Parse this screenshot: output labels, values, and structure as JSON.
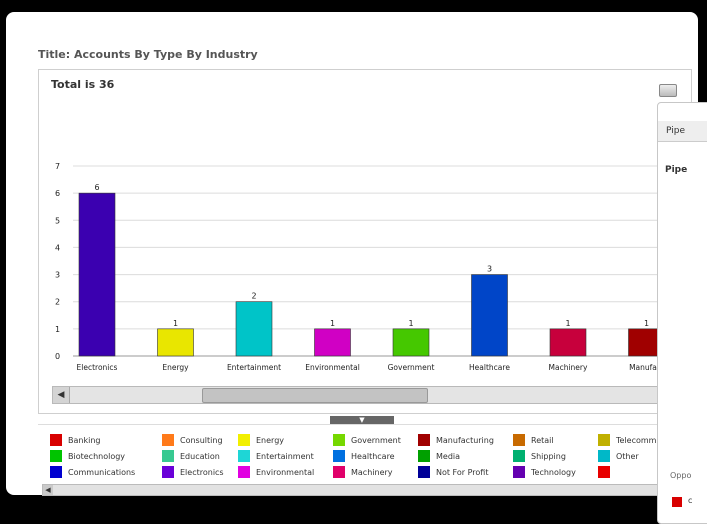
{
  "panel": {
    "title": "Title: Accounts By Type By Industry",
    "total": "Total is 36"
  },
  "chart_data": {
    "type": "bar",
    "title": "",
    "xlabel": "",
    "ylabel": "",
    "ylim": [
      0,
      7
    ],
    "y_ticks": [
      0,
      1,
      2,
      3,
      4,
      5,
      6,
      7
    ],
    "grid": true,
    "categories": [
      "Electronics",
      "Energy",
      "Entertainment",
      "Environmental",
      "Government",
      "Healthcare",
      "Machinery",
      "Manufact"
    ],
    "values": [
      6,
      1,
      2,
      1,
      1,
      3,
      1,
      1
    ],
    "colors": [
      "#3b00b0",
      "#e9e600",
      "#00c4c8",
      "#d000c4",
      "#45c800",
      "#0045c8",
      "#c7003c",
      "#a00000"
    ]
  },
  "scrollbar": {
    "left_arrow": "◀"
  },
  "collapse_handle": {
    "label": "▼"
  },
  "legend": {
    "items": [
      {
        "label": "Banking",
        "color": "#d80000"
      },
      {
        "label": "Biotechnology",
        "color": "#00c400"
      },
      {
        "label": "Communications",
        "color": "#0000d0"
      },
      {
        "label": "Consulting",
        "color": "#ff7a1a"
      },
      {
        "label": "Education",
        "color": "#37c991"
      },
      {
        "label": "Electronics",
        "color": "#6a00d8"
      },
      {
        "label": "Energy",
        "color": "#f2ef00"
      },
      {
        "label": "Entertainment",
        "color": "#1ed6d6"
      },
      {
        "label": "Environmental",
        "color": "#e100e1"
      },
      {
        "label": "Government",
        "color": "#76d800"
      },
      {
        "label": "Healthcare",
        "color": "#0070e0"
      },
      {
        "label": "Machinery",
        "color": "#e0006a"
      },
      {
        "label": "Manufacturing",
        "color": "#a00000"
      },
      {
        "label": "Media",
        "color": "#00a000"
      },
      {
        "label": "Not For Profit",
        "color": "#000098"
      },
      {
        "label": "Retail",
        "color": "#c86a00"
      },
      {
        "label": "Shipping",
        "color": "#00b070"
      },
      {
        "label": "Technology",
        "color": "#6400b0"
      },
      {
        "label": "Telecommu",
        "color": "#c0b000"
      },
      {
        "label": "Other",
        "color": "#00b8c8"
      },
      {
        "label": "",
        "color": "#e80000"
      }
    ]
  },
  "second_window": {
    "tab": "Pipe",
    "heading": "Pipe",
    "footer_label": "Oppo",
    "footer_item": "c"
  }
}
